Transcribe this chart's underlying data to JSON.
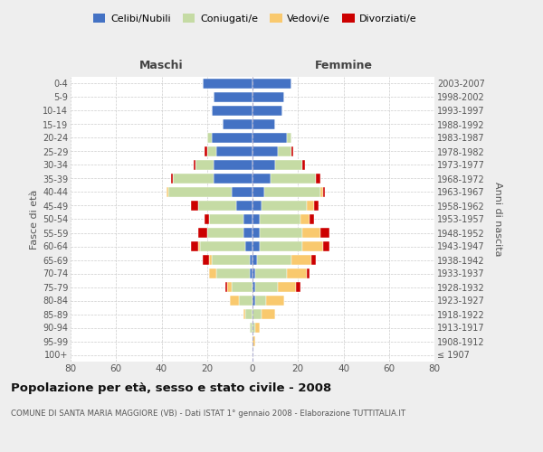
{
  "age_groups": [
    "100+",
    "95-99",
    "90-94",
    "85-89",
    "80-84",
    "75-79",
    "70-74",
    "65-69",
    "60-64",
    "55-59",
    "50-54",
    "45-49",
    "40-44",
    "35-39",
    "30-34",
    "25-29",
    "20-24",
    "15-19",
    "10-14",
    "5-9",
    "0-4"
  ],
  "birth_years": [
    "≤ 1907",
    "1908-1912",
    "1913-1917",
    "1918-1922",
    "1923-1927",
    "1928-1932",
    "1933-1937",
    "1938-1942",
    "1943-1947",
    "1948-1952",
    "1953-1957",
    "1958-1962",
    "1963-1967",
    "1968-1972",
    "1973-1977",
    "1978-1982",
    "1983-1987",
    "1988-1992",
    "1993-1997",
    "1998-2002",
    "2003-2007"
  ],
  "males": {
    "celibi": [
      0,
      0,
      0,
      0,
      0,
      0,
      1,
      1,
      3,
      4,
      4,
      7,
      9,
      17,
      17,
      16,
      18,
      13,
      18,
      17,
      22
    ],
    "coniugati": [
      0,
      0,
      1,
      3,
      6,
      9,
      15,
      17,
      20,
      16,
      15,
      17,
      28,
      18,
      8,
      4,
      2,
      0,
      0,
      0,
      0
    ],
    "vedovi": [
      0,
      0,
      0,
      1,
      4,
      2,
      3,
      1,
      1,
      0,
      0,
      0,
      1,
      0,
      0,
      0,
      0,
      0,
      0,
      0,
      0
    ],
    "divorziati": [
      0,
      0,
      0,
      0,
      0,
      1,
      0,
      3,
      3,
      4,
      2,
      3,
      0,
      1,
      1,
      1,
      0,
      0,
      0,
      0,
      0
    ]
  },
  "females": {
    "nubili": [
      0,
      0,
      0,
      0,
      1,
      1,
      1,
      2,
      3,
      3,
      3,
      4,
      5,
      8,
      10,
      11,
      15,
      10,
      13,
      14,
      17
    ],
    "coniugate": [
      0,
      0,
      1,
      4,
      5,
      10,
      14,
      15,
      19,
      19,
      18,
      20,
      25,
      20,
      12,
      6,
      2,
      0,
      0,
      0,
      0
    ],
    "vedove": [
      0,
      1,
      2,
      6,
      8,
      8,
      9,
      9,
      9,
      8,
      4,
      3,
      1,
      0,
      0,
      0,
      0,
      0,
      0,
      0,
      0
    ],
    "divorziate": [
      0,
      0,
      0,
      0,
      0,
      2,
      1,
      2,
      3,
      4,
      2,
      2,
      1,
      2,
      1,
      1,
      0,
      0,
      0,
      0,
      0
    ]
  },
  "colors": {
    "celibi": "#4472c4",
    "coniugati": "#c5dba4",
    "vedovi": "#f9c96e",
    "divorziati": "#cc0000"
  },
  "xlim": 80,
  "title": "Popolazione per età, sesso e stato civile - 2008",
  "subtitle": "COMUNE DI SANTA MARIA MAGGIORE (VB) - Dati ISTAT 1° gennaio 2008 - Elaborazione TUTTITALIA.IT",
  "ylabel_left": "Fasce di età",
  "ylabel_right": "Anni di nascita",
  "xlabel_left": "Maschi",
  "xlabel_right": "Femmine",
  "bg_color": "#eeeeee",
  "plot_bg": "#ffffff"
}
